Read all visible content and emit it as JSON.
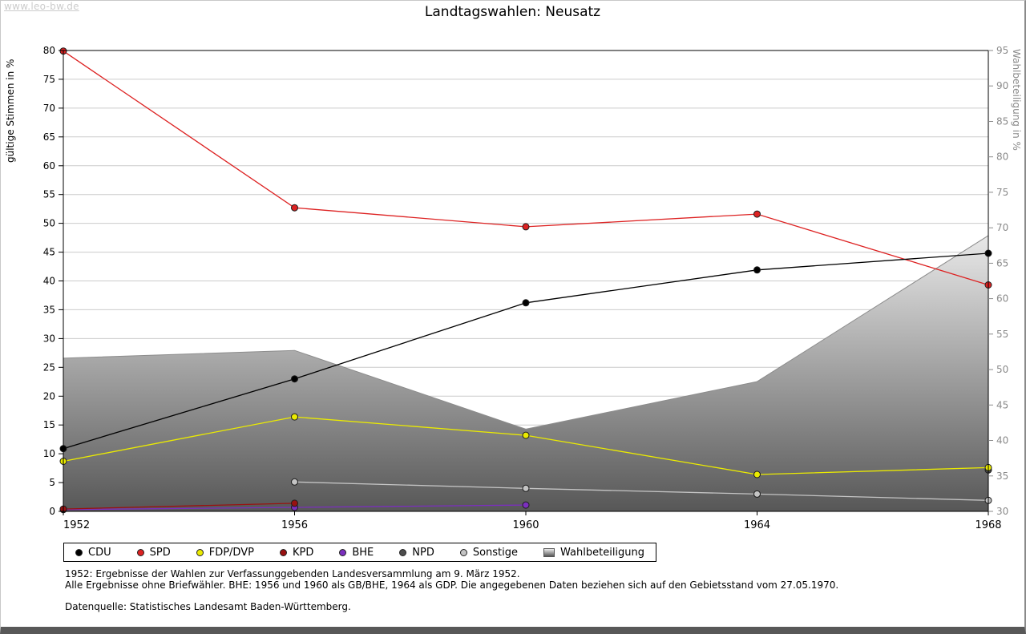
{
  "watermark": "www.leo-bw.de",
  "title": "Landtagswahlen: Neusatz",
  "footnotes": {
    "line1": "1952: Ergebnisse der Wahlen zur Verfassunggebenden Landesversammlung am 9. März 1952.",
    "line2": "Alle Ergebnisse ohne Briefwähler. BHE: 1956 und 1960 als GB/BHE, 1964 als GDP. Die angegebenen Daten beziehen sich auf den Gebietsstand vom 27.05.1970.",
    "source": "Datenquelle: Statistisches Landesamt Baden-Württemberg."
  },
  "chart_data": {
    "type": "line",
    "title": "Landtagswahlen: Neusatz",
    "grid": true,
    "legend_position": "bottom",
    "x_ticks": [
      "1952",
      "1956",
      "1960",
      "1964",
      "1968"
    ],
    "x_values": [
      1952,
      1956,
      1960,
      1964,
      1968
    ],
    "y_left": {
      "label": "gültige Stimmen in %",
      "min": 0,
      "max": 80,
      "ticks": [
        0,
        5,
        10,
        15,
        20,
        25,
        30,
        35,
        40,
        45,
        50,
        55,
        60,
        65,
        70,
        75,
        80
      ],
      "tick_color": "#000000"
    },
    "y_right": {
      "label": "Wahlbeteiligung in %",
      "min": 30,
      "max": 95,
      "ticks": [
        30,
        35,
        40,
        45,
        50,
        55,
        60,
        65,
        70,
        75,
        80,
        85,
        90,
        95
      ],
      "tick_color": "#8a8a8a"
    },
    "series": [
      {
        "name": "CDU",
        "color": "#000000",
        "axis": "left",
        "x": [
          1952,
          1956,
          1960,
          1964,
          1968
        ],
        "values": [
          10.9,
          23.0,
          36.2,
          41.9,
          44.8
        ]
      },
      {
        "name": "SPD",
        "color": "#dd2222",
        "axis": "left",
        "x": [
          1952,
          1956,
          1960,
          1964,
          1968
        ],
        "values": [
          79.9,
          52.7,
          49.4,
          51.6,
          39.3
        ]
      },
      {
        "name": "FDP/DVP",
        "color": "#ebeb00",
        "axis": "left",
        "x": [
          1952,
          1956,
          1960,
          1964,
          1968
        ],
        "values": [
          8.7,
          16.4,
          13.2,
          6.4,
          7.6
        ]
      },
      {
        "name": "KPD",
        "color": "#991111",
        "axis": "left",
        "x": [
          1952,
          1956
        ],
        "values": [
          0.4,
          1.4
        ]
      },
      {
        "name": "BHE",
        "color": "#7b2fbe",
        "axis": "left",
        "x": [
          1952,
          1956,
          1960
        ],
        "values": [
          0.3,
          0.7,
          1.1
        ]
      },
      {
        "name": "NPD",
        "color": "#4d4d4d",
        "axis": "left",
        "x": [
          1968
        ],
        "values": [
          7.2
        ]
      },
      {
        "name": "Sonstige",
        "color": "#c4c4c4",
        "axis": "left",
        "x": [
          1956,
          1960,
          1964,
          1968
        ],
        "values": [
          5.1,
          4.0,
          3.0,
          1.9
        ]
      }
    ],
    "area_series": {
      "name": "Wahlbeteiligung",
      "axis": "right",
      "fill_top": "#ececec",
      "fill_bottom": "#575757",
      "stroke": "#8c8c8c",
      "x": [
        1952,
        1956,
        1960,
        1964,
        1968
      ],
      "values": [
        51.6,
        52.7,
        41.6,
        48.3,
        68.9
      ]
    }
  }
}
